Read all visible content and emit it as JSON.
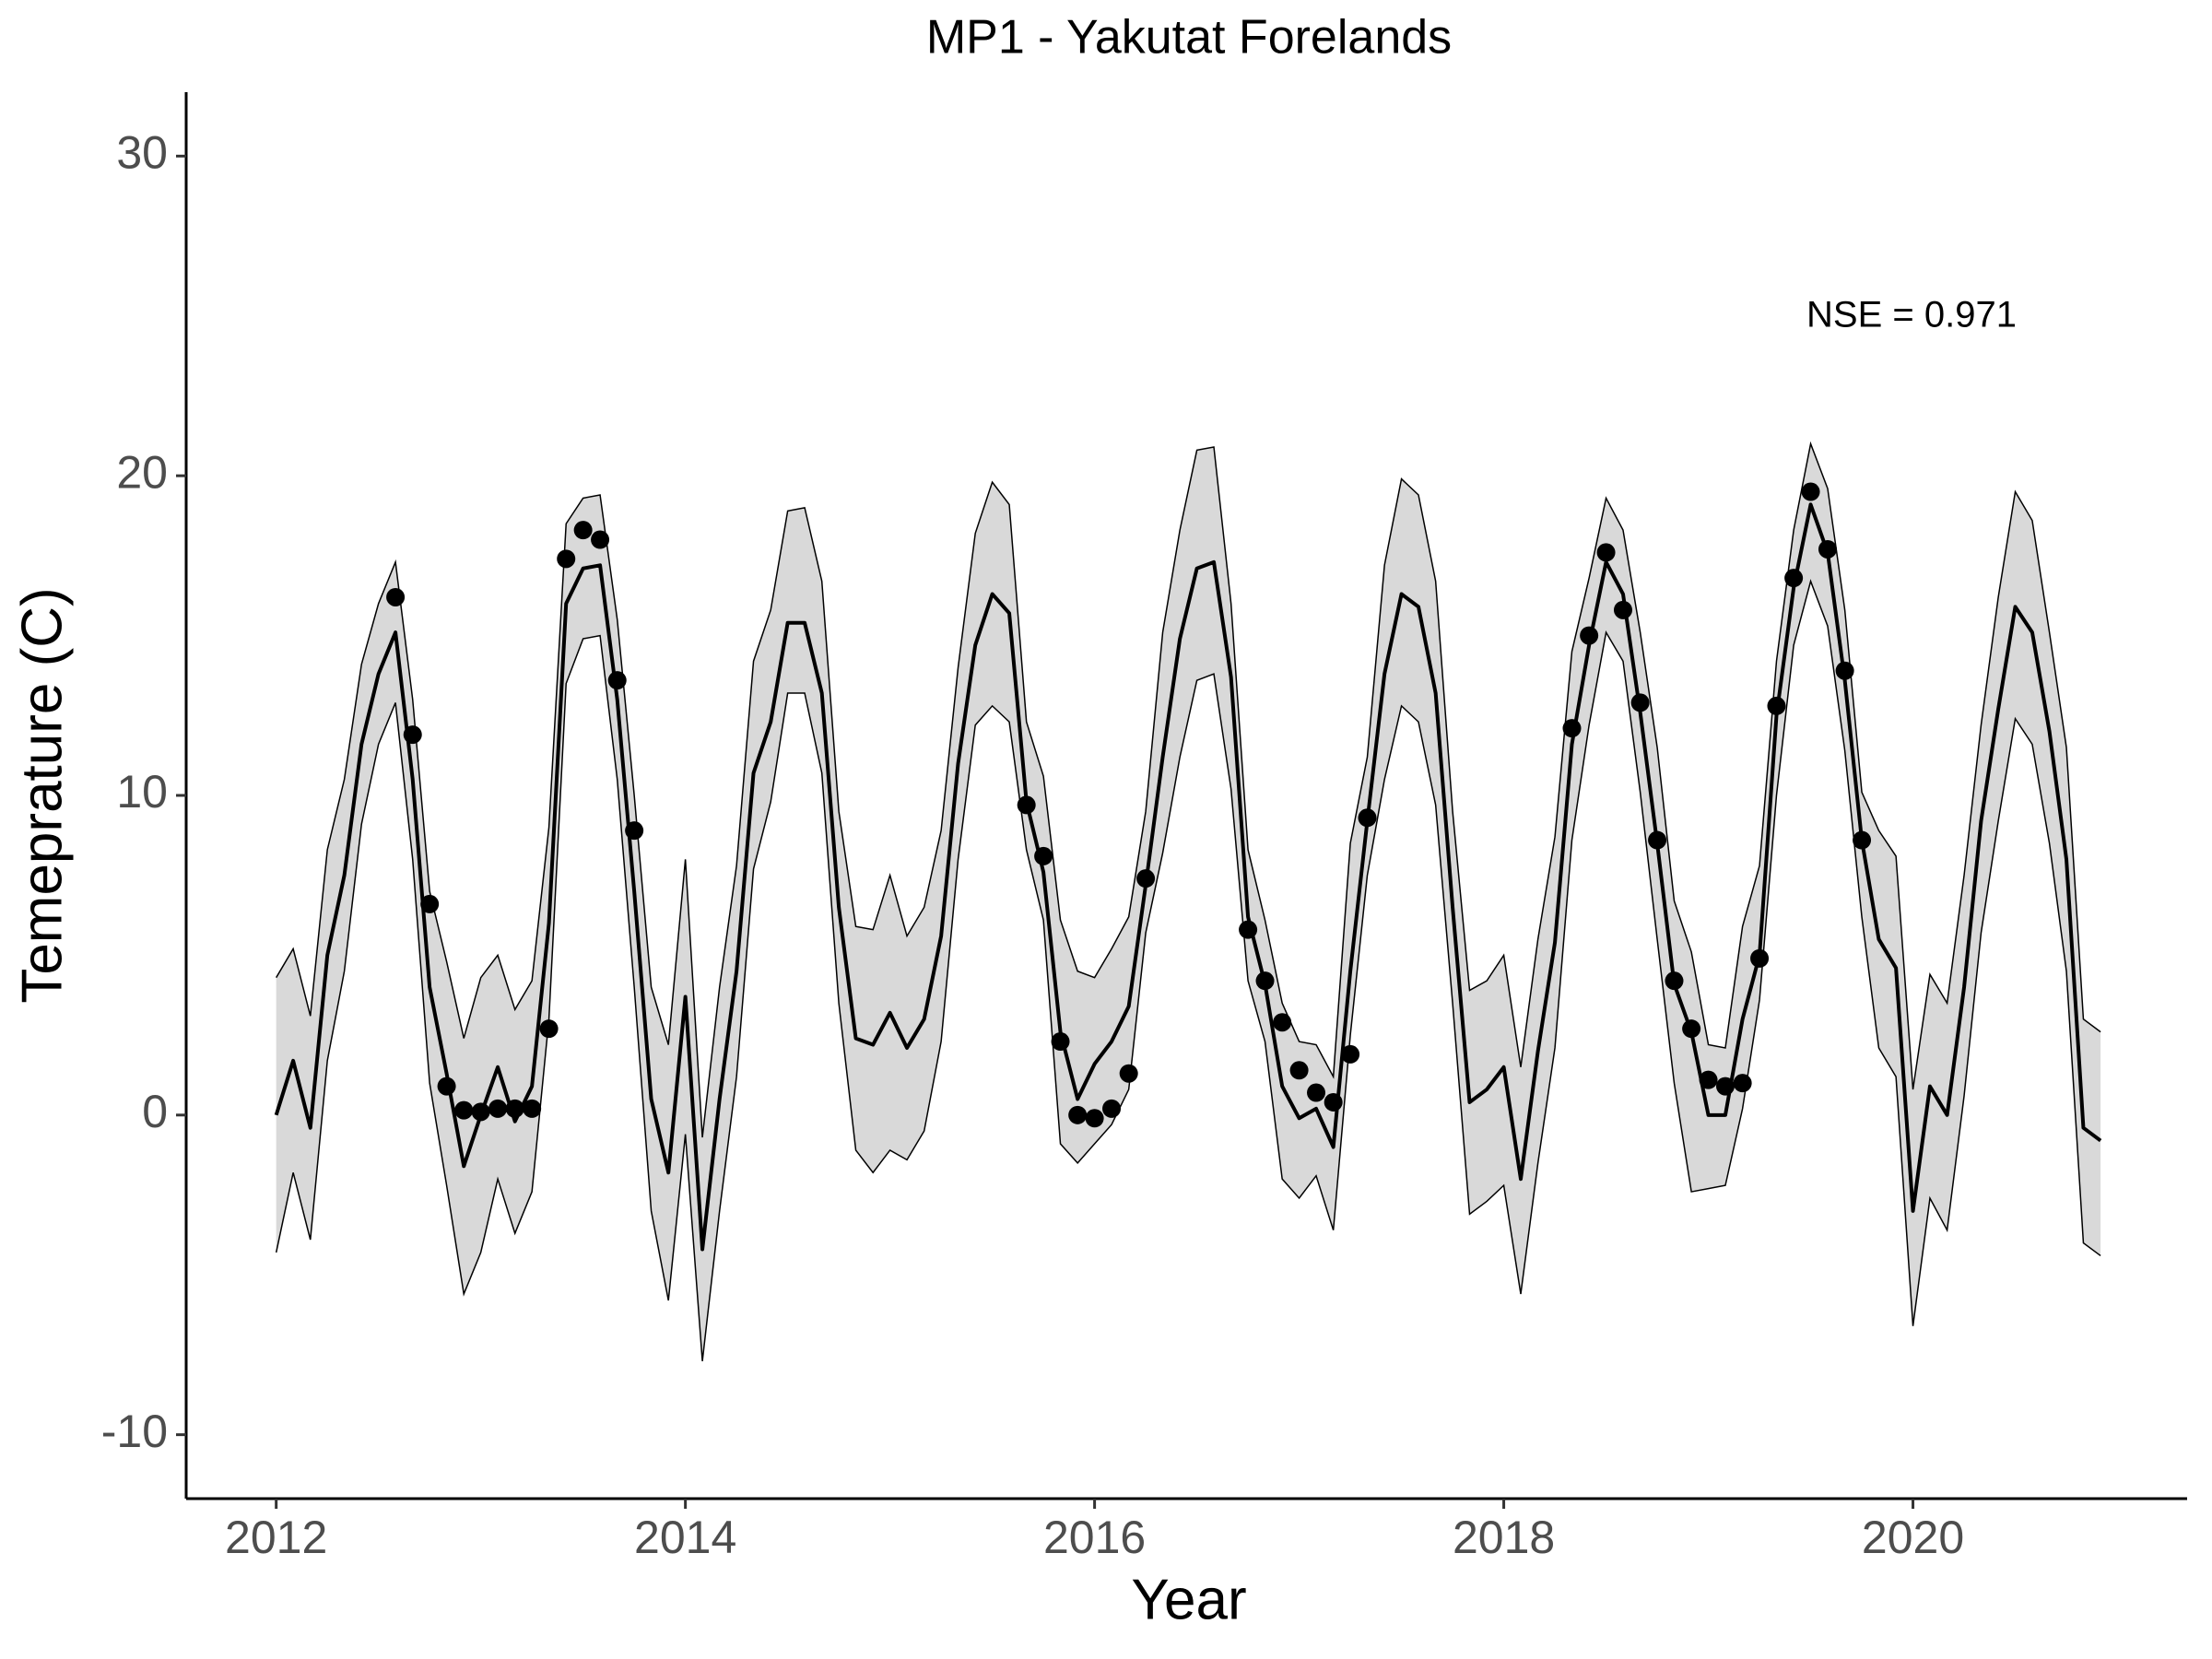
{
  "chart_data": {
    "type": "line",
    "title": "MP1 - Yakutat Forelands",
    "xlabel": "Year",
    "ylabel": "Temeprature (C)",
    "annotation": "NSE = 0.971",
    "xlim": [
      2011.56,
      2021.34
    ],
    "xticks": [
      2012,
      2014,
      2016,
      2018,
      2020
    ],
    "ylim": [
      -12,
      32
    ],
    "yticks": [
      -10,
      0,
      10,
      20,
      30
    ],
    "x": [
      2012,
      2012.083,
      2012.167,
      2012.25,
      2012.333,
      2012.417,
      2012.5,
      2012.583,
      2012.667,
      2012.75,
      2012.833,
      2012.917,
      2013,
      2013.083,
      2013.167,
      2013.25,
      2013.333,
      2013.417,
      2013.5,
      2013.583,
      2013.667,
      2013.75,
      2013.833,
      2013.917,
      2014,
      2014.083,
      2014.167,
      2014.25,
      2014.333,
      2014.417,
      2014.5,
      2014.583,
      2014.667,
      2014.75,
      2014.833,
      2014.917,
      2015,
      2015.083,
      2015.167,
      2015.25,
      2015.333,
      2015.417,
      2015.5,
      2015.583,
      2015.667,
      2015.75,
      2015.833,
      2015.917,
      2016,
      2016.083,
      2016.167,
      2016.25,
      2016.333,
      2016.417,
      2016.5,
      2016.583,
      2016.667,
      2016.75,
      2016.833,
      2016.917,
      2017,
      2017.083,
      2017.167,
      2017.25,
      2017.333,
      2017.417,
      2017.5,
      2017.583,
      2017.667,
      2017.75,
      2017.833,
      2017.917,
      2018,
      2018.083,
      2018.167,
      2018.25,
      2018.333,
      2018.417,
      2018.5,
      2018.583,
      2018.667,
      2018.75,
      2018.833,
      2018.917,
      2019,
      2019.083,
      2019.167,
      2019.25,
      2019.333,
      2019.417,
      2019.5,
      2019.583,
      2019.667,
      2019.75,
      2019.833,
      2019.917,
      2020,
      2020.083,
      2020.167,
      2020.25,
      2020.333,
      2020.417,
      2020.5,
      2020.583,
      2020.667,
      2020.75,
      2020.833,
      2020.917
    ],
    "series": [
      {
        "color": "#000000",
        "values": [
          0,
          1.7,
          -0.4,
          5,
          7.5,
          11.6,
          13.8,
          15.1,
          10.5,
          4,
          1.3,
          -1.6,
          0,
          1.5,
          -0.2,
          0.9,
          6,
          16,
          17.1,
          17.2,
          13,
          7,
          0.5,
          -1.8,
          3.7,
          -4.2,
          0.5,
          4.5,
          10.7,
          12.3,
          15.4,
          15.4,
          13.2,
          6.5,
          2.4,
          2.2,
          3.2,
          2.1,
          3,
          5.6,
          11,
          14.7,
          16.3,
          15.7,
          9.8,
          7.6,
          2.6,
          0.5,
          1.6,
          2.3,
          3.4,
          7.2,
          11.2,
          14.9,
          17.1,
          17.3,
          13.7,
          6.2,
          4.1,
          0.9,
          -0.1,
          0.2,
          -1,
          4.5,
          9.2,
          13.8,
          16.3,
          15.9,
          13.2,
          6.5,
          0.4,
          0.8,
          1.5,
          -2,
          2,
          5.4,
          11.6,
          14.7,
          17.3,
          16.3,
          12.6,
          8.5,
          4.1,
          2.6,
          0,
          0,
          3,
          5,
          12.5,
          16.5,
          19.1,
          17.6,
          13.6,
          8.6,
          5.5,
          4.6,
          -3,
          0.9,
          0,
          4,
          9.2,
          12.7,
          15.9,
          15.1,
          12,
          8,
          -0.4,
          -0.8
        ]
      }
    ],
    "band": {
      "color": "#d9d9d9",
      "upper": [
        4.3,
        5.2,
        3.1,
        8.3,
        10.5,
        14.1,
        16,
        17.3,
        13,
        7,
        4.8,
        2.4,
        4.3,
        5,
        3.3,
        4.2,
        9,
        18.5,
        19.3,
        19.4,
        15.5,
        10,
        4,
        2.2,
        8,
        -0.7,
        4,
        7.8,
        14.2,
        15.8,
        18.9,
        19,
        16.7,
        9.5,
        5.9,
        5.8,
        7.5,
        5.6,
        6.5,
        8.9,
        14,
        18.2,
        19.8,
        19.1,
        12.3,
        10.6,
        6.1,
        4.5,
        4.3,
        5.2,
        6.2,
        9.5,
        15.1,
        18.3,
        20.8,
        20.9,
        16,
        8.3,
        6.1,
        3.5,
        2.3,
        2.2,
        1.2,
        8.5,
        11.2,
        17.2,
        19.9,
        19.4,
        16.7,
        9.5,
        3.9,
        4.2,
        5,
        1.5,
        5.5,
        8.7,
        14.5,
        16.8,
        19.3,
        18.3,
        15.1,
        11.5,
        6.7,
        5.1,
        2.2,
        2.1,
        5.9,
        7.8,
        14.2,
        18.3,
        21,
        19.6,
        15.8,
        10.1,
        8.9,
        8.1,
        0.8,
        4.4,
        3.5,
        7.5,
        12.2,
        16.2,
        19.5,
        18.6,
        15.1,
        11.5,
        3,
        2.6
      ],
      "lower": [
        -4.3,
        -1.8,
        -3.9,
        1.7,
        4.5,
        9.1,
        11.6,
        12.9,
        8,
        1,
        -2.2,
        -5.6,
        -4.3,
        -2,
        -3.7,
        -2.4,
        3,
        13.5,
        14.9,
        15,
        10.5,
        4,
        -3,
        -5.8,
        -0.6,
        -7.7,
        -3,
        1.2,
        7.7,
        9.8,
        13.2,
        13.2,
        10.7,
        3.5,
        -1.1,
        -1.8,
        -1.1,
        -1.4,
        -0.5,
        2.3,
        8,
        12.2,
        12.8,
        12.3,
        8.3,
        6.1,
        -0.9,
        -1.5,
        -0.9,
        -0.3,
        0.8,
        5.7,
        8.2,
        11.2,
        13.6,
        13.8,
        10.2,
        4.2,
        2.3,
        -2,
        -2.6,
        -1.9,
        -3.6,
        2.5,
        7.5,
        10.5,
        12.8,
        12.3,
        9.7,
        3.5,
        -3.1,
        -2.7,
        -2.2,
        -5.6,
        -1.5,
        2.1,
        8.6,
        12.2,
        15.1,
        14.2,
        10.1,
        5.5,
        1,
        -2.4,
        -2.3,
        -2.2,
        0.2,
        3.6,
        10,
        14.7,
        16.7,
        15.3,
        11.4,
        6.2,
        2.1,
        1.2,
        -6.6,
        -2.6,
        -3.6,
        0.6,
        5.7,
        9.2,
        12.4,
        11.6,
        8.5,
        4.5,
        -4,
        -4.4
      ]
    },
    "points": {
      "color": "#000000",
      "x": [
        2012.583,
        2012.667,
        2012.75,
        2012.833,
        2012.917,
        2013,
        2013.083,
        2013.167,
        2013.25,
        2013.333,
        2013.417,
        2013.5,
        2013.583,
        2013.667,
        2013.75,
        2015.667,
        2015.75,
        2015.833,
        2015.917,
        2016,
        2016.083,
        2016.167,
        2016.25,
        2016.75,
        2016.833,
        2016.917,
        2017,
        2017.083,
        2017.167,
        2017.25,
        2017.333,
        2018.333,
        2018.417,
        2018.5,
        2018.583,
        2018.667,
        2018.75,
        2018.833,
        2018.917,
        2019,
        2019.083,
        2019.167,
        2019.25,
        2019.333,
        2019.417,
        2019.5,
        2019.583,
        2019.667,
        2019.75
      ],
      "values": [
        16.2,
        11.9,
        6.6,
        0.9,
        0.15,
        0.1,
        0.2,
        0.2,
        0.2,
        2.7,
        17.4,
        18.3,
        18,
        13.6,
        8.9,
        9.7,
        8.1,
        2.3,
        0,
        -0.1,
        0.2,
        1.3,
        7.4,
        5.8,
        4.2,
        2.9,
        1.4,
        0.7,
        0.4,
        1.9,
        9.3,
        12.1,
        15,
        17.6,
        15.8,
        12.9,
        8.6,
        4.2,
        2.7,
        1.1,
        0.9,
        1,
        4.9,
        12.8,
        16.8,
        19.5,
        17.7,
        13.9,
        8.6
      ]
    }
  }
}
